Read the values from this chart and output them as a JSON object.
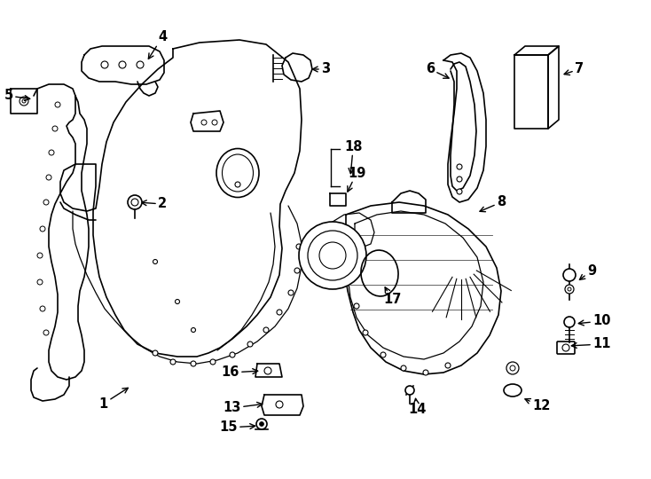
{
  "bg_color": "#ffffff",
  "line_color": "#000000",
  "lw": 1.2,
  "fig_width": 7.34,
  "fig_height": 5.4,
  "label_fontsize": 10.5,
  "labels": [
    [
      1,
      122,
      455,
      148,
      435,
      "right"
    ],
    [
      2,
      178,
      230,
      155,
      228,
      "left"
    ],
    [
      3,
      362,
      78,
      348,
      78,
      "left"
    ],
    [
      4,
      183,
      42,
      165,
      70,
      "center"
    ],
    [
      5,
      15,
      108,
      38,
      112,
      "right"
    ],
    [
      6,
      490,
      78,
      510,
      90,
      "right"
    ],
    [
      7,
      648,
      78,
      632,
      85,
      "left"
    ],
    [
      8,
      560,
      228,
      537,
      240,
      "left"
    ],
    [
      9,
      662,
      305,
      650,
      318,
      "left"
    ],
    [
      10,
      668,
      362,
      648,
      365,
      "left"
    ],
    [
      11,
      668,
      388,
      640,
      390,
      "left"
    ],
    [
      12,
      600,
      458,
      588,
      448,
      "left"
    ],
    [
      13,
      272,
      460,
      300,
      455,
      "right"
    ],
    [
      14,
      460,
      462,
      468,
      445,
      "left"
    ],
    [
      15,
      268,
      482,
      292,
      480,
      "right"
    ],
    [
      16,
      270,
      420,
      295,
      418,
      "right"
    ],
    [
      17,
      432,
      338,
      432,
      320,
      "left"
    ],
    [
      18,
      388,
      165,
      395,
      200,
      "left"
    ],
    [
      19,
      392,
      195,
      390,
      220,
      "left"
    ]
  ]
}
